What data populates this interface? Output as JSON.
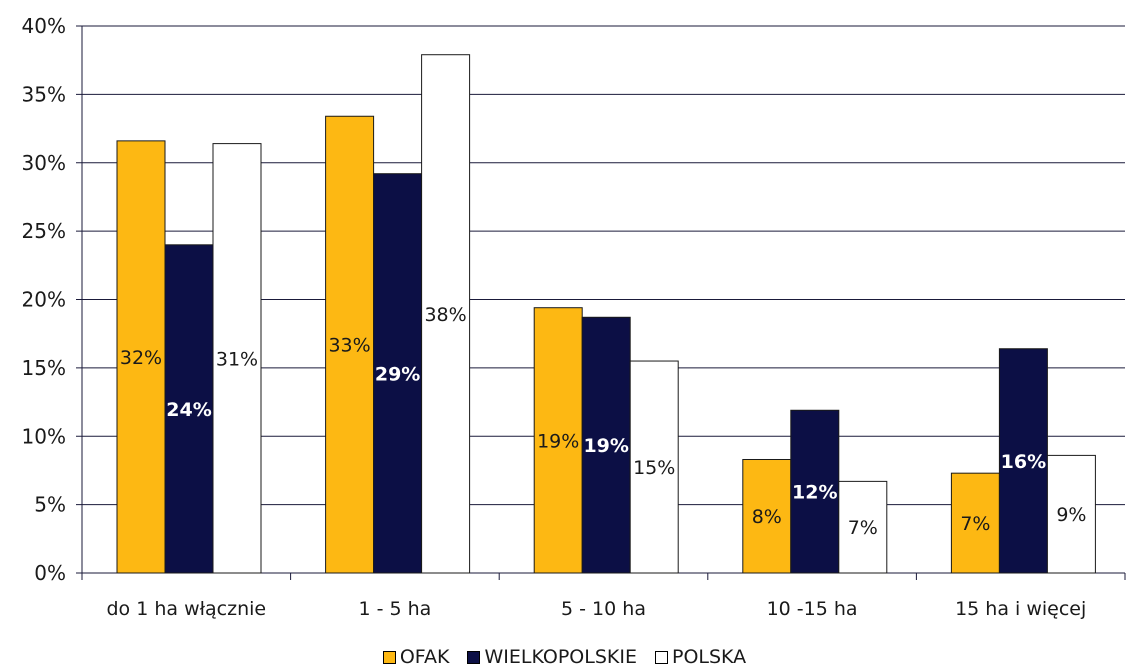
{
  "colors": {
    "ofak": "#FDB813",
    "wielkopolskie": "#0C0F45",
    "polska": "#FFFFFF",
    "grid": "#1a1a3a"
  },
  "chart_data": {
    "type": "bar",
    "categories": [
      "do 1 ha włącznie",
      "1 - 5 ha",
      "5 - 10 ha",
      "10 -15 ha",
      "15 ha i więcej"
    ],
    "series": [
      {
        "name": "OFAK",
        "values": [
          31.6,
          33.4,
          19.4,
          8.3,
          7.3
        ],
        "labels": [
          "32%",
          "33%",
          "19%",
          "8%",
          "7%"
        ]
      },
      {
        "name": "WIELKOPOLSKIE",
        "values": [
          24.0,
          29.2,
          18.7,
          11.9,
          16.4
        ],
        "labels": [
          "24%",
          "29%",
          "19%",
          "12%",
          "16%"
        ]
      },
      {
        "name": "POLSKA",
        "values": [
          31.4,
          37.9,
          15.5,
          6.7,
          8.6
        ],
        "labels": [
          "31%",
          "38%",
          "15%",
          "7%",
          "9%"
        ]
      }
    ],
    "yticks": [
      "0%",
      "5%",
      "10%",
      "15%",
      "20%",
      "25%",
      "30%",
      "35%",
      "40%"
    ],
    "ylim": [
      0,
      40
    ],
    "grid": true,
    "legend": "bottom"
  }
}
